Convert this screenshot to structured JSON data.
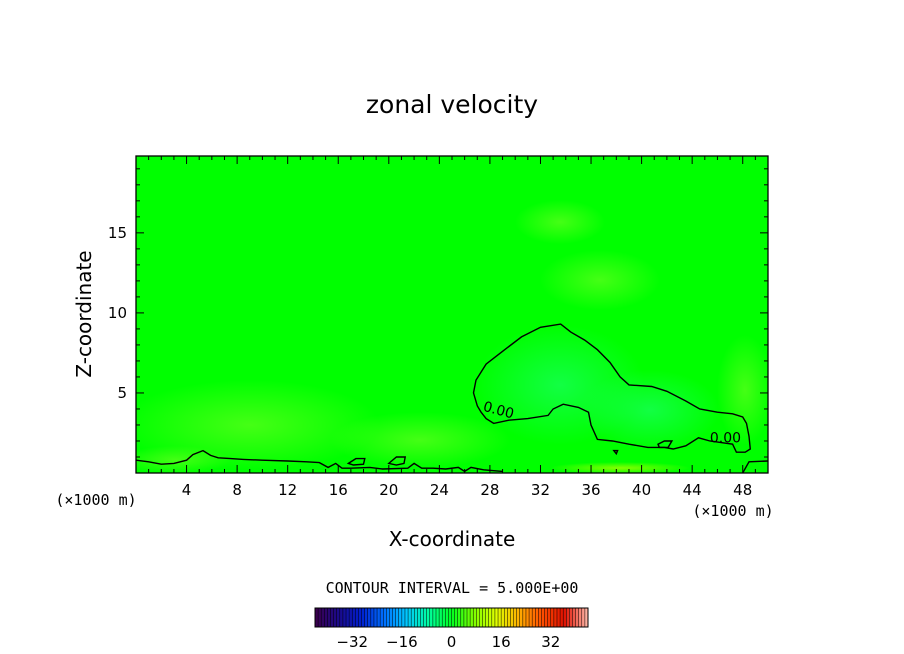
{
  "chart_data": {
    "type": "contour",
    "title": "zonal velocity",
    "xlabel": "X-coordinate",
    "ylabel": "Z-coordinate",
    "x_unit_label": "(×1000 m)",
    "xlim": [
      0,
      50
    ],
    "ylim": [
      0,
      19.8
    ],
    "xticks": [
      4,
      8,
      12,
      16,
      20,
      24,
      28,
      32,
      36,
      40,
      44,
      48
    ],
    "yticks": [
      5,
      10,
      15
    ],
    "contour_interval_text": "CONTOUR INTERVAL = 5.000E+00",
    "contour_label": "0.00",
    "field_color": "#00ff00",
    "colorbar": {
      "min": -44,
      "max": 44,
      "ticks": [
        -32,
        -16,
        0,
        16,
        32
      ],
      "colors": [
        "#3a0050",
        "#1a0a8c",
        "#0020d0",
        "#0070ff",
        "#00c8ff",
        "#00ffa0",
        "#00ff20",
        "#80ff00",
        "#e0ff00",
        "#ffb000",
        "#ff5000",
        "#e01000",
        "#ffb0a0"
      ]
    },
    "zero_contour_main": [
      [
        27.0,
        4.2
      ],
      [
        26.7,
        5.0
      ],
      [
        26.9,
        5.8
      ],
      [
        27.7,
        6.8
      ],
      [
        29.0,
        7.6
      ],
      [
        30.5,
        8.5
      ],
      [
        32.0,
        9.1
      ],
      [
        33.6,
        9.3
      ],
      [
        34.4,
        8.8
      ],
      [
        35.5,
        8.3
      ],
      [
        36.5,
        7.7
      ],
      [
        37.5,
        6.9
      ],
      [
        38.3,
        6.0
      ],
      [
        39.0,
        5.5
      ],
      [
        40.8,
        5.4
      ],
      [
        42.0,
        5.1
      ],
      [
        43.5,
        4.5
      ],
      [
        44.6,
        4.0
      ],
      [
        46.0,
        3.8
      ],
      [
        47.2,
        3.7
      ],
      [
        48.0,
        3.5
      ],
      [
        48.3,
        3.1
      ],
      [
        48.5,
        2.3
      ],
      [
        48.6,
        1.5
      ],
      [
        48.2,
        1.3
      ],
      [
        47.5,
        1.3
      ],
      [
        47.2,
        1.8
      ],
      [
        46.3,
        1.9
      ],
      [
        45.4,
        2.0
      ],
      [
        44.5,
        2.2
      ],
      [
        43.5,
        1.7
      ],
      [
        42.5,
        1.5
      ],
      [
        41.8,
        1.6
      ],
      [
        40.5,
        1.6
      ],
      [
        39.0,
        1.8
      ],
      [
        37.7,
        2.0
      ],
      [
        36.5,
        2.1
      ],
      [
        36.0,
        3.0
      ],
      [
        35.8,
        3.8
      ],
      [
        35.0,
        4.1
      ],
      [
        33.8,
        4.3
      ],
      [
        33.0,
        4.0
      ],
      [
        32.6,
        3.6
      ],
      [
        31.0,
        3.4
      ],
      [
        29.5,
        3.3
      ],
      [
        28.3,
        3.1
      ],
      [
        27.7,
        3.4
      ],
      [
        27.3,
        3.8
      ],
      [
        27.0,
        4.2
      ]
    ],
    "zero_contour_islands": [
      [
        [
          41.3,
          1.8
        ],
        [
          41.8,
          2.0
        ],
        [
          42.4,
          2.0
        ],
        [
          42.1,
          1.6
        ],
        [
          41.4,
          1.6
        ],
        [
          41.3,
          1.8
        ]
      ],
      [
        [
          37.8,
          1.4
        ],
        [
          38.1,
          1.4
        ],
        [
          38.0,
          1.2
        ],
        [
          37.8,
          1.4
        ]
      ],
      [
        [
          16.8,
          0.6
        ],
        [
          17.4,
          0.9
        ],
        [
          18.1,
          0.9
        ],
        [
          18.0,
          0.55
        ],
        [
          17.2,
          0.5
        ],
        [
          16.8,
          0.6
        ]
      ],
      [
        [
          20.0,
          0.6
        ],
        [
          20.6,
          1.0
        ],
        [
          21.3,
          1.0
        ],
        [
          21.2,
          0.6
        ],
        [
          20.6,
          0.5
        ],
        [
          20.0,
          0.6
        ]
      ]
    ],
    "zero_contour_bottom": [
      [
        0.0,
        0.8
      ],
      [
        1.0,
        0.7
      ],
      [
        2.0,
        0.55
      ],
      [
        3.0,
        0.6
      ],
      [
        4.0,
        0.8
      ],
      [
        4.5,
        1.15
      ],
      [
        5.3,
        1.4
      ],
      [
        5.9,
        1.1
      ],
      [
        6.5,
        0.95
      ],
      [
        7.5,
        0.9
      ],
      [
        8.5,
        0.85
      ],
      [
        10.0,
        0.8
      ],
      [
        12.0,
        0.75
      ],
      [
        13.5,
        0.7
      ],
      [
        14.5,
        0.65
      ],
      [
        15.2,
        0.35
      ],
      [
        15.8,
        0.6
      ],
      [
        16.3,
        0.3
      ],
      [
        17.0,
        0.3
      ],
      [
        18.5,
        0.35
      ],
      [
        19.5,
        0.25
      ],
      [
        21.5,
        0.3
      ],
      [
        22.0,
        0.6
      ],
      [
        22.6,
        0.3
      ],
      [
        23.5,
        0.3
      ],
      [
        24.5,
        0.25
      ],
      [
        25.5,
        0.35
      ],
      [
        26.0,
        0.1
      ],
      [
        26.5,
        0.35
      ],
      [
        27.5,
        0.2
      ],
      [
        29.0,
        0.1
      ]
    ],
    "zero_contour_bottom_right": [
      [
        48.0,
        0.0
      ],
      [
        48.5,
        0.7
      ],
      [
        50.0,
        0.75
      ]
    ],
    "label_positions": [
      [
        27.4,
        3.9
      ],
      [
        45.4,
        1.9
      ]
    ]
  }
}
